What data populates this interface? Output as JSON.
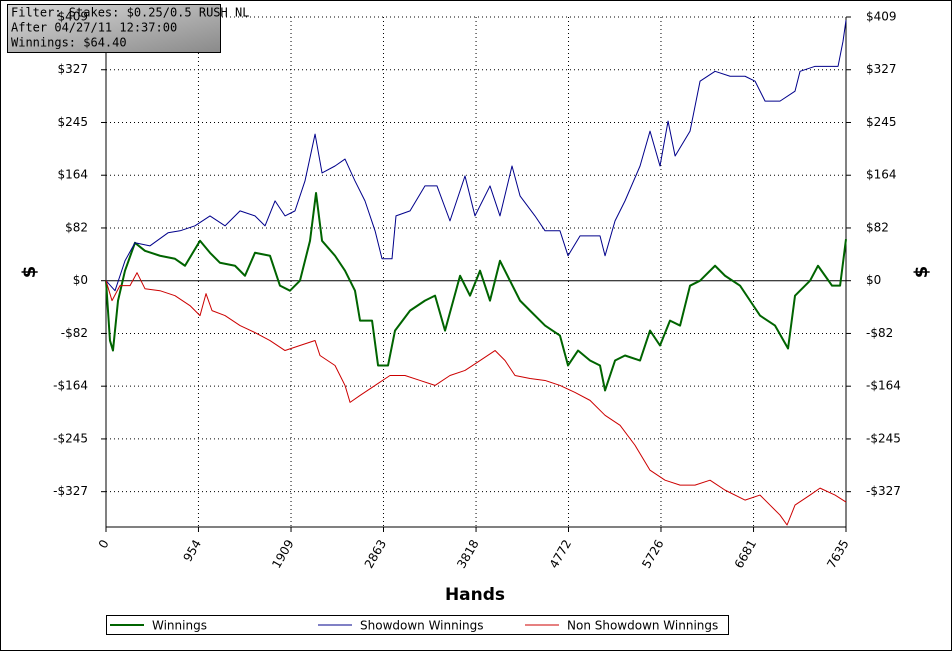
{
  "chart_data": {
    "type": "line",
    "annotations": [
      "Filter: Stakes: $0.25/0.5 RUSH NL",
      "After 04/27/11 12:37:00",
      "Winnings: $64.40"
    ],
    "xlabel": "Hands",
    "ylabel": "$",
    "y2label": "$",
    "xlim": [
      0,
      7635
    ],
    "xticks": [
      0,
      954,
      1909,
      2863,
      3818,
      4772,
      5726,
      6681,
      7635
    ],
    "ylim": [
      -382,
      409
    ],
    "yticks": [
      {
        "value": 409,
        "label": "$409"
      },
      {
        "value": 327.2,
        "label": "$327"
      },
      {
        "value": 245.4,
        "label": "$245"
      },
      {
        "value": 163.6,
        "label": "$164"
      },
      {
        "value": 81.8,
        "label": "$82"
      },
      {
        "value": 0,
        "label": "$0"
      },
      {
        "value": -81.8,
        "label": "-$82"
      },
      {
        "value": -163.6,
        "label": "-$164"
      },
      {
        "value": -245.4,
        "label": "-$245"
      },
      {
        "value": -327.2,
        "label": "-$327"
      }
    ],
    "grid": true,
    "legend": "bottom",
    "series": [
      {
        "name": "Winnings",
        "color": "#006400",
        "width": 2,
        "x": [
          0,
          41,
          72,
          124,
          196,
          299,
          402,
          557,
          712,
          815,
          970,
          1073,
          1176,
          1331,
          1434,
          1537,
          1692,
          1795,
          1898,
          2001,
          2105,
          2167,
          2229,
          2363,
          2466,
          2569,
          2621,
          2745,
          2807,
          2910,
          2982,
          3137,
          3291,
          3395,
          3498,
          3653,
          3756,
          3859,
          3962,
          4065,
          4168,
          4272,
          4375,
          4530,
          4684,
          4767,
          4870,
          4994,
          5097,
          5149,
          5252,
          5355,
          5510,
          5613,
          5716,
          5819,
          5923,
          6026,
          6129,
          6284,
          6387,
          6542,
          6645,
          6748,
          6903,
          7037,
          7109,
          7264,
          7346,
          7419,
          7491,
          7574,
          7635
        ],
        "values": [
          0,
          -92.8,
          -108.3,
          -31,
          15.5,
          58.8,
          46.4,
          38.7,
          34,
          23.2,
          61.9,
          43.3,
          27.8,
          23.2,
          7.7,
          43.3,
          38.7,
          -7.7,
          -15.5,
          0,
          61.9,
          136.1,
          61.9,
          38.7,
          15.5,
          -15.5,
          -61.9,
          -61.9,
          -131.5,
          -131.5,
          -77.4,
          -46.4,
          -30.9,
          -23.2,
          -77.4,
          7.7,
          -23.2,
          15.5,
          -30.9,
          30.9,
          0,
          -30.9,
          -46.4,
          -69.6,
          -85.1,
          -131.5,
          -108.3,
          -123.8,
          -131.5,
          -170.2,
          -123.8,
          -116,
          -123.8,
          -77.4,
          -100.5,
          -61.9,
          -69.6,
          -7.7,
          0,
          23.2,
          7.7,
          -7.7,
          -30.9,
          -54.1,
          -69.6,
          -105.2,
          -23.2,
          0,
          23.2,
          7.7,
          -7.7,
          -7.7,
          64.4
        ]
      },
      {
        "name": "Showdown Winnings",
        "color": "#00008b",
        "width": 1,
        "x": [
          0,
          93,
          196,
          299,
          454,
          640,
          764,
          918,
          1073,
          1228,
          1383,
          1537,
          1641,
          1744,
          1847,
          1950,
          2053,
          2157,
          2229,
          2363,
          2466,
          2569,
          2672,
          2776,
          2848,
          2951,
          2992,
          3137,
          3291,
          3415,
          3549,
          3704,
          3807,
          3962,
          4065,
          4189,
          4272,
          4426,
          4530,
          4684,
          4767,
          4891,
          5097,
          5149,
          5252,
          5355,
          5510,
          5613,
          5716,
          5799,
          5872,
          6026,
          6129,
          6284,
          6439,
          6593,
          6697,
          6800,
          6954,
          7109,
          7161,
          7316,
          7470,
          7553,
          7604,
          7635
        ],
        "values": [
          0,
          -15.5,
          30.9,
          58.8,
          54.1,
          74.3,
          77.4,
          85.1,
          100.5,
          85.1,
          108.3,
          100.5,
          85.1,
          123.8,
          100.5,
          108.3,
          154.7,
          227.4,
          167.1,
          177.9,
          188.7,
          154.7,
          123.8,
          77.4,
          34,
          34,
          100.5,
          108.3,
          147,
          147,
          92.8,
          162.4,
          100.5,
          147,
          100.5,
          177.9,
          131.5,
          100.5,
          77.4,
          77.4,
          38.7,
          69.6,
          69.6,
          38.7,
          92.8,
          123.8,
          177.9,
          232,
          177.9,
          247.5,
          193.4,
          232,
          309.4,
          324.8,
          317.1,
          317.1,
          309.4,
          278.5,
          278.5,
          294,
          324.8,
          332.5,
          332.5,
          332.5,
          371.2,
          404
        ]
      },
      {
        "name": "Non Showdown Winnings",
        "color": "#cc0000",
        "width": 1,
        "x": [
          0,
          62,
          144,
          248,
          320,
          402,
          557,
          712,
          867,
          970,
          1032,
          1094,
          1228,
          1383,
          1537,
          1692,
          1847,
          2001,
          2157,
          2208,
          2363,
          2466,
          2518,
          2621,
          2776,
          2930,
          3085,
          3240,
          3395,
          3549,
          3704,
          3859,
          4014,
          4117,
          4220,
          4375,
          4530,
          4684,
          4839,
          4994,
          5149,
          5304,
          5458,
          5613,
          5768,
          5923,
          6077,
          6232,
          6387,
          6593,
          6748,
          6851,
          6954,
          7027,
          7109,
          7264,
          7367,
          7522,
          7635
        ],
        "values": [
          0,
          -30.9,
          -7.7,
          -7.7,
          12.4,
          -12.4,
          -15.5,
          -23.2,
          -38.7,
          -54.1,
          -20.1,
          -46.4,
          -54.1,
          -69.6,
          -80.4,
          -92.8,
          -108.3,
          -100.5,
          -92.8,
          -116,
          -131.5,
          -162.4,
          -188.7,
          -177.9,
          -162.4,
          -147,
          -147,
          -154.7,
          -162.4,
          -147,
          -139.2,
          -123.8,
          -108.3,
          -123.8,
          -147,
          -151.6,
          -154.7,
          -162.4,
          -173.3,
          -185.6,
          -208.8,
          -224.3,
          -255.2,
          -293.9,
          -309.4,
          -317.1,
          -317.1,
          -309.4,
          -324.8,
          -340.3,
          -332.5,
          -348,
          -363.5,
          -378.9,
          -348,
          -332.5,
          -321.7,
          -332.5,
          -343.3
        ]
      }
    ]
  }
}
